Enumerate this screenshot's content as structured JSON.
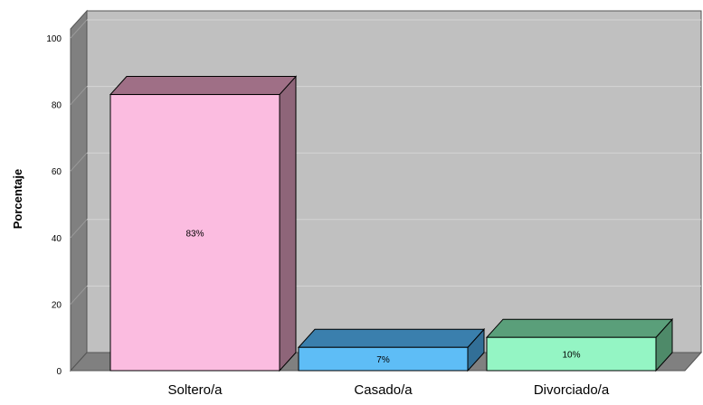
{
  "chart_data": {
    "type": "bar",
    "style": "3d",
    "title": "",
    "xlabel": "",
    "ylabel": "Porcentaje",
    "ylim": [
      0,
      100
    ],
    "yticks": [
      "0",
      "20",
      "40",
      "60",
      "80",
      "100"
    ],
    "grid": true,
    "legend": "none",
    "categories": [
      "Soltero/a",
      "Casado/a",
      "Divorciado/a"
    ],
    "values": [
      83,
      7,
      10
    ],
    "data_labels": [
      "83%",
      "7%",
      "10%"
    ],
    "colors": {
      "wall": "#c0c0c0",
      "side_wall": "#808080",
      "floor": "#808080",
      "grid_line": "#d4d4d4",
      "bars": [
        "#fbbce0",
        "#5ebdf6",
        "#94f5c4"
      ],
      "bar_tops": [
        "#9f6f86",
        "#3a7fad",
        "#5a9f7a"
      ],
      "bar_sides": [
        "#8e6579",
        "#326f97",
        "#4e8a69"
      ]
    }
  }
}
